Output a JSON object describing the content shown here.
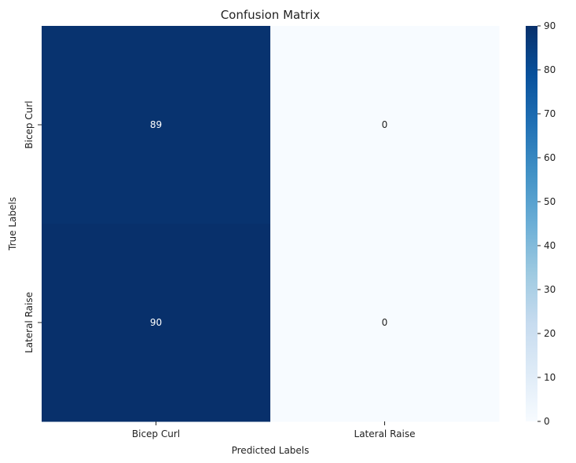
{
  "chart_data": {
    "type": "heatmap",
    "title": "Confusion Matrix",
    "xlabel": "Predicted Labels",
    "ylabel": "True Labels",
    "x_categories": [
      "Bicep Curl",
      "Lateral Raise"
    ],
    "y_categories": [
      "Bicep Curl",
      "Lateral Raise"
    ],
    "values": [
      [
        89,
        0
      ],
      [
        90,
        0
      ]
    ],
    "colorbar": {
      "min": 0,
      "max": 90,
      "ticks": [
        0,
        10,
        20,
        30,
        40,
        50,
        60,
        70,
        80,
        90
      ],
      "colormap": "Blues",
      "low_color": "#f7fbff",
      "high_color": "#08306b"
    },
    "annotation_color_dark_cell": "#ffffff",
    "annotation_color_light_cell": "#222222",
    "grid": false
  }
}
